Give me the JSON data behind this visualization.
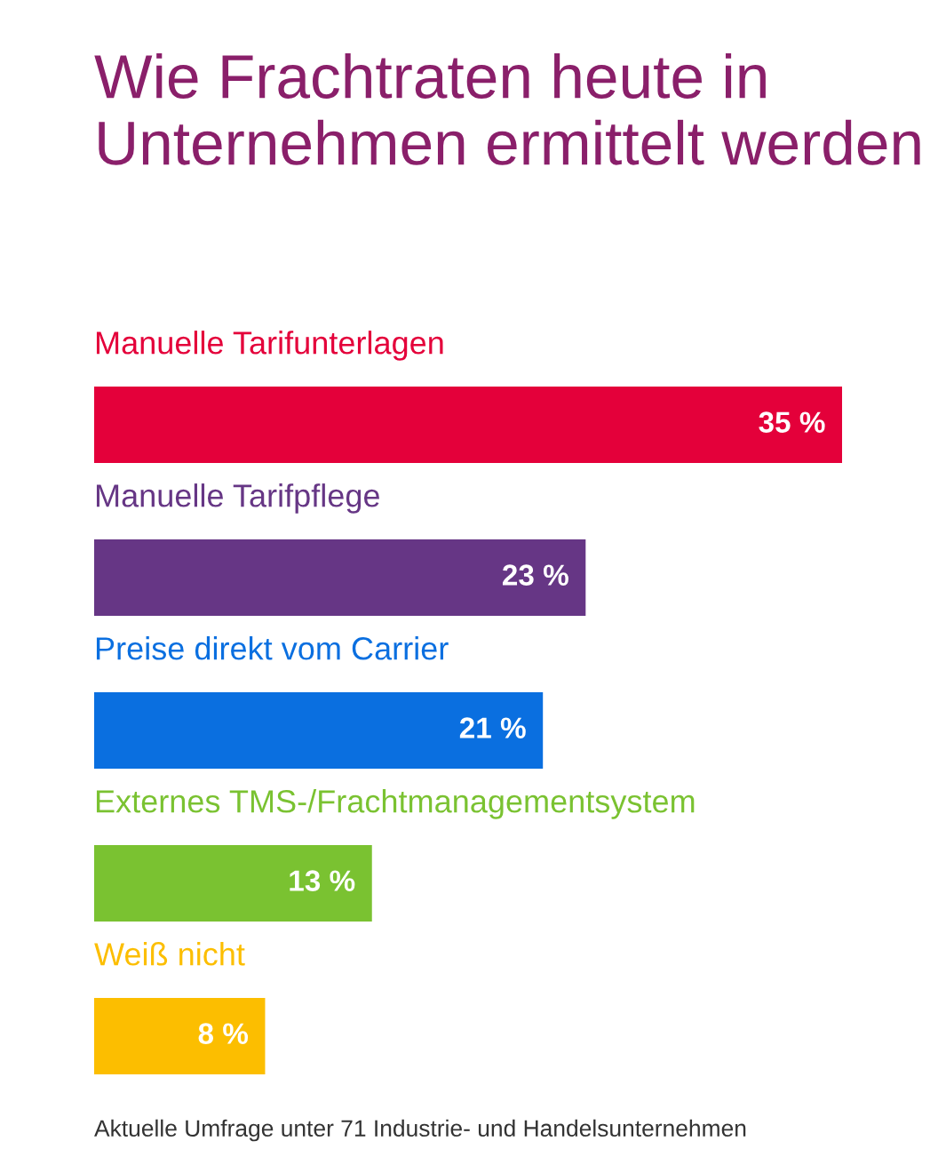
{
  "chart_data": {
    "type": "bar",
    "orientation": "horizontal",
    "title": "Wie Frachtraten heute in Unternehmen ermittelt werden",
    "categories": [
      "Manuelle Tarifunterlagen",
      "Manuelle Tarifpflege",
      "Preise direkt vom Carrier",
      "Externes TMS-/Frachtmanagementsystem",
      "Weiß nicht"
    ],
    "values": [
      35,
      23,
      21,
      13,
      8
    ],
    "colors": [
      "#e4003a",
      "#663685",
      "#0a6fe0",
      "#7ac231",
      "#fcbe00"
    ],
    "value_labels": [
      "35 %",
      "23 %",
      "21 %",
      "13 %",
      "8 %"
    ],
    "xlim": [
      0,
      35
    ],
    "tick_labels": false,
    "grid": false,
    "annotations": [
      "Aktuelle Umfrage unter 71 Industrie- und Handelsunternehmen"
    ]
  }
}
